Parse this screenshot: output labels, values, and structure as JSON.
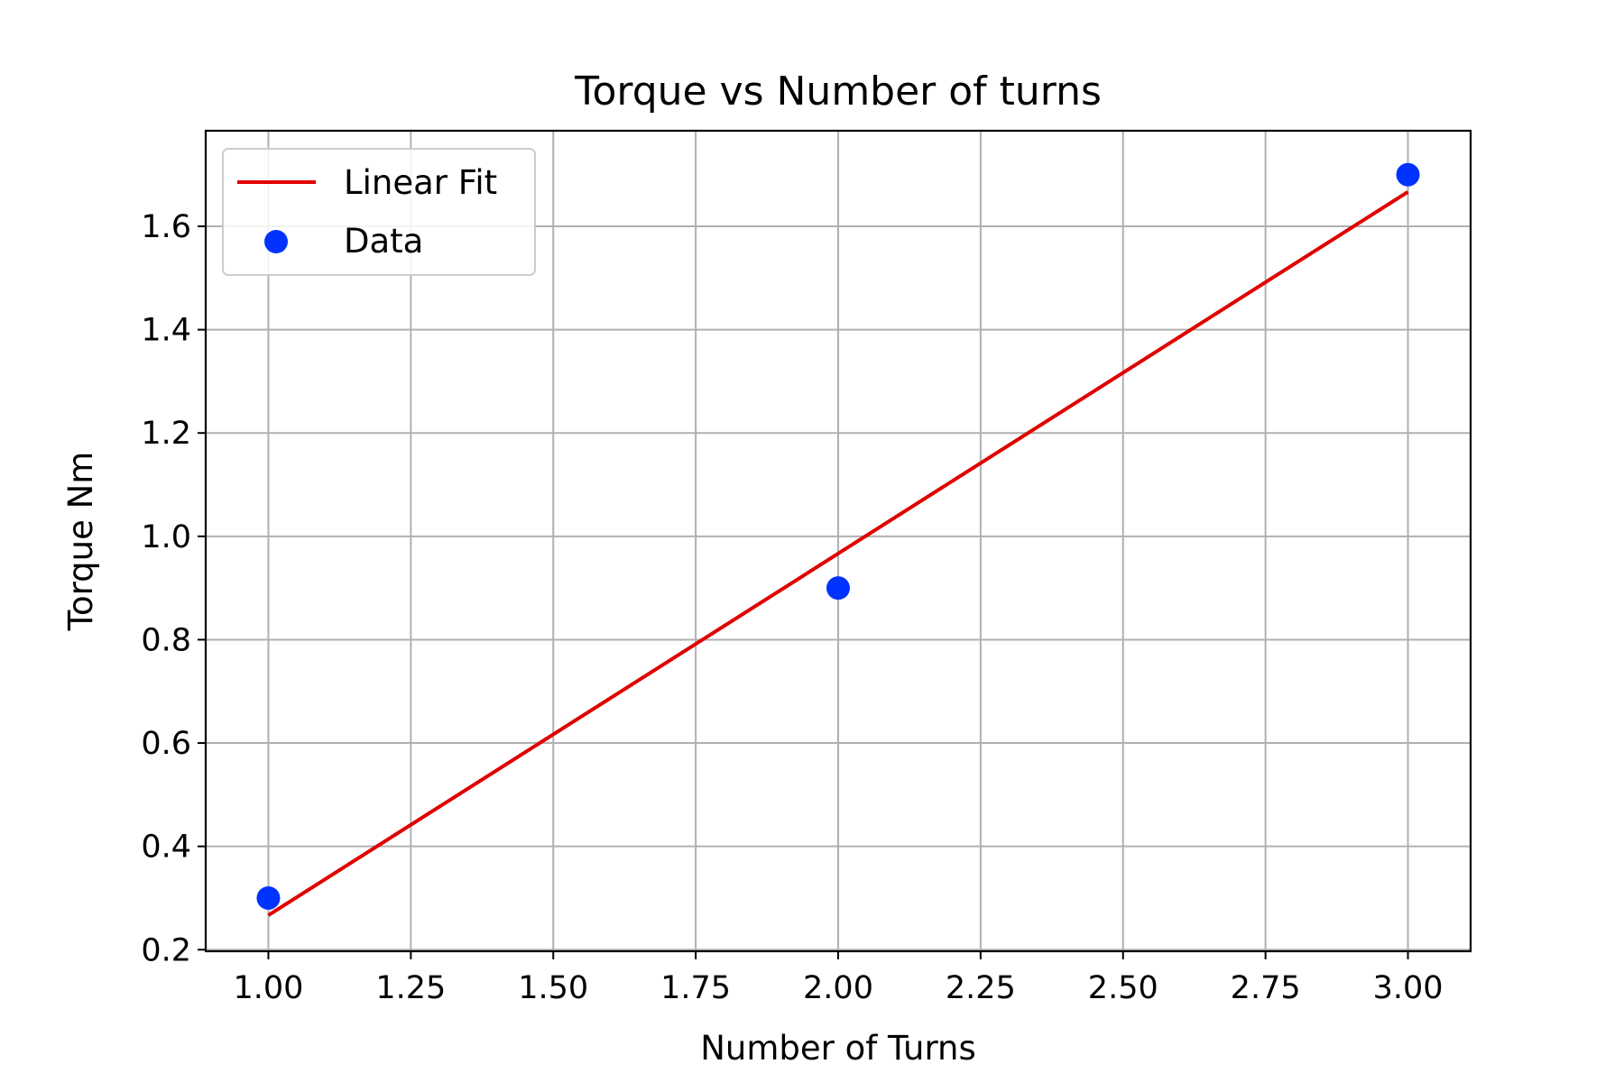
{
  "chart_data": {
    "type": "scatter",
    "title": "Torque vs Number of turns",
    "xlabel": "Number of Turns",
    "ylabel": "Torque Nm",
    "xlim": [
      0.89,
      3.11
    ],
    "ylim": [
      0.197,
      1.785
    ],
    "x_ticks": [
      1.0,
      1.25,
      1.5,
      1.75,
      2.0,
      2.25,
      2.5,
      2.75,
      3.0
    ],
    "x_tick_labels": [
      "1.00",
      "1.25",
      "1.50",
      "1.75",
      "2.00",
      "2.25",
      "2.50",
      "2.75",
      "3.00"
    ],
    "y_ticks": [
      0.2,
      0.4,
      0.6,
      0.8,
      1.0,
      1.2,
      1.4,
      1.6
    ],
    "y_tick_labels": [
      "0.2",
      "0.4",
      "0.6",
      "0.8",
      "1.0",
      "1.2",
      "1.4",
      "1.6"
    ],
    "grid": true,
    "legend_position": "top-left",
    "series": [
      {
        "name": "Linear Fit",
        "kind": "line",
        "color": "#e00000",
        "x": [
          1.0,
          3.0
        ],
        "y": [
          0.2667,
          1.6667
        ]
      },
      {
        "name": "Data",
        "kind": "scatter",
        "color": "#0033ff",
        "x": [
          1.0,
          2.0,
          3.0
        ],
        "y": [
          0.3,
          0.9,
          1.7
        ]
      }
    ]
  }
}
